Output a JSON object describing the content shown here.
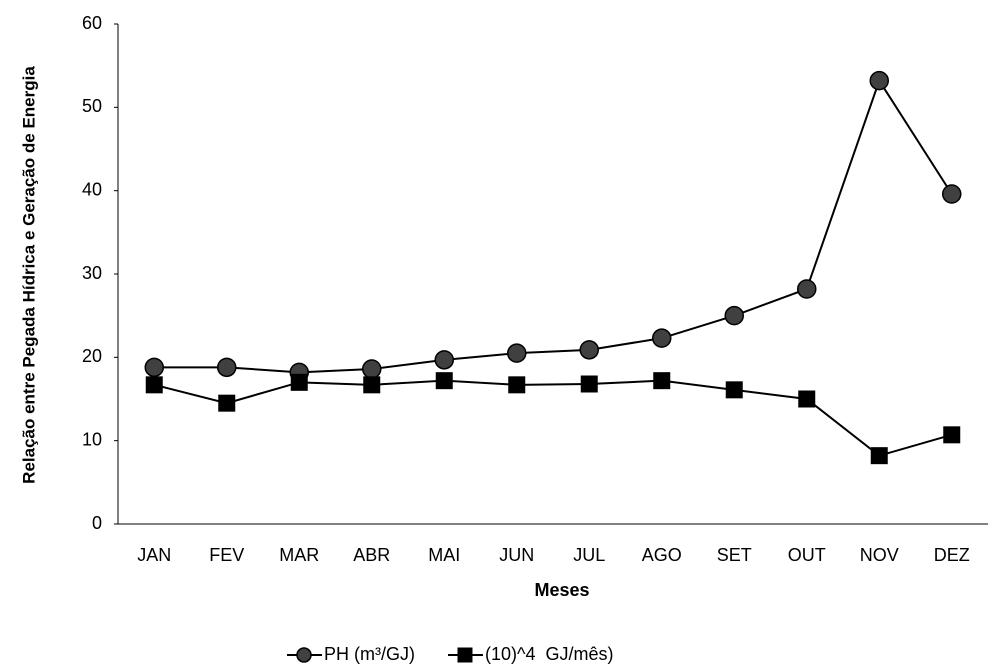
{
  "chart_data": {
    "type": "line",
    "x_label": "Meses",
    "y_label": "Relação entre Pegada Hídrica e Geração de Energia",
    "categories": [
      "JAN",
      "FEV",
      "MAR",
      "ABR",
      "MAI",
      "JUN",
      "JUL",
      "AGO",
      "SET",
      "OUT",
      "NOV",
      "DEZ"
    ],
    "series": [
      {
        "name": "PH (m³/GJ)",
        "color": "#404040",
        "marker": "circle",
        "values": [
          18.8,
          18.8,
          18.2,
          18.6,
          19.7,
          20.5,
          20.9,
          22.3,
          25.0,
          28.2,
          53.2,
          39.6
        ]
      },
      {
        "name": "(10)^4  GJ/mês)",
        "color": "#000000",
        "marker": "square",
        "values": [
          16.7,
          14.5,
          17.0,
          16.7,
          17.2,
          16.7,
          16.8,
          17.2,
          16.1,
          15.0,
          8.2,
          10.7
        ]
      }
    ],
    "ylim": [
      0,
      60
    ],
    "yticks": [
      0,
      10,
      20,
      30,
      40,
      50,
      60
    ],
    "grid": false,
    "legend": "bottom"
  }
}
